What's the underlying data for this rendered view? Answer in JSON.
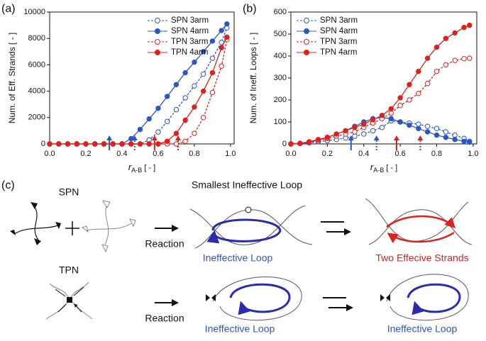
{
  "chart_data": [
    {
      "type": "line",
      "panel": "(a)",
      "ylabel": "Num. of Eff.  Strands [ - ]",
      "xlabel": {
        "symbol": "r",
        "subscript": "A-B",
        "unit": "[ - ]"
      },
      "x": [
        0,
        0.05,
        0.1,
        0.15,
        0.2,
        0.25,
        0.3,
        0.35,
        0.4,
        0.45,
        0.5,
        0.55,
        0.6,
        0.65,
        0.7,
        0.75,
        0.8,
        0.85,
        0.9,
        0.95,
        0.98
      ],
      "xlim": [
        0,
        1.02
      ],
      "ylim": [
        0,
        10000
      ],
      "xticks": [
        {
          "value": 0,
          "label": "0.0"
        },
        0.2,
        0.4,
        0.6,
        0.8,
        {
          "value": 1,
          "label": "1.0"
        }
      ],
      "yticks": [
        0,
        2000,
        4000,
        6000,
        8000,
        10000
      ],
      "legend": "upper right",
      "series": [
        {
          "name": "SPN 3arm",
          "color": "#2b57c4",
          "dashed": true,
          "marker": "open",
          "values": [
            0,
            0,
            0,
            0,
            0,
            0,
            0,
            0,
            0,
            0,
            0,
            300,
            900,
            1700,
            2600,
            3500,
            4400,
            5300,
            6500,
            7700,
            8800
          ]
        },
        {
          "name": "SPN 4arm",
          "color": "#2b57c4",
          "dashed": false,
          "marker": "filled",
          "values": [
            0,
            0,
            0,
            0,
            0,
            0,
            0,
            0,
            0,
            400,
            1100,
            1900,
            2700,
            3600,
            4500,
            5400,
            6200,
            7000,
            7800,
            8600,
            9100
          ]
        },
        {
          "name": "TPN 3arm",
          "color": "#e0201c",
          "dashed": true,
          "marker": "open",
          "values": [
            0,
            0,
            0,
            0,
            0,
            0,
            0,
            0,
            0,
            0,
            0,
            0,
            0,
            0,
            0,
            200,
            800,
            2000,
            3900,
            5900,
            7900
          ]
        },
        {
          "name": "TPN 4arm",
          "color": "#e0201c",
          "dashed": false,
          "marker": "filled",
          "values": [
            0,
            0,
            0,
            0,
            0,
            0,
            0,
            0,
            0,
            0,
            0,
            0,
            0,
            200,
            800,
            1800,
            2800,
            4000,
            5400,
            7300,
            8100
          ]
        }
      ],
      "arrows": [
        {
          "x": 0.33,
          "color": "#2b57c4",
          "dashed": false
        },
        {
          "x": 0.47,
          "color": "#2b57c4",
          "dashed": true
        },
        {
          "x": 0.58,
          "color": "#e0201c",
          "dashed": false
        },
        {
          "x": 0.71,
          "color": "#e0201c",
          "dashed": true
        }
      ]
    },
    {
      "type": "line",
      "panel": "(b)",
      "ylabel": "Num. of Ineff. Loops [ - ]",
      "xlabel": {
        "symbol": "r",
        "subscript": "A-B",
        "unit": "[ - ]"
      },
      "x": [
        0,
        0.05,
        0.1,
        0.15,
        0.2,
        0.25,
        0.3,
        0.35,
        0.4,
        0.45,
        0.5,
        0.55,
        0.6,
        0.65,
        0.7,
        0.75,
        0.8,
        0.85,
        0.9,
        0.95,
        0.98
      ],
      "xlim": [
        0,
        1.02
      ],
      "ylim": [
        0,
        600
      ],
      "xticks": [
        {
          "value": 0,
          "label": "0.0"
        },
        0.2,
        0.4,
        0.6,
        0.8,
        {
          "value": 1,
          "label": "1.0"
        }
      ],
      "yticks": [
        0,
        100,
        200,
        300,
        400,
        500,
        600
      ],
      "legend": "upper left",
      "series": [
        {
          "name": "SPN 3arm",
          "color": "#2b57c4",
          "dashed": true,
          "marker": "open",
          "values": [
            0,
            2,
            5,
            10,
            15,
            20,
            27,
            35,
            45,
            60,
            75,
            105,
            100,
            95,
            90,
            80,
            70,
            55,
            40,
            25,
            12
          ]
        },
        {
          "name": "SPN 4arm",
          "color": "#2b57c4",
          "dashed": false,
          "marker": "filled",
          "values": [
            0,
            2,
            8,
            18,
            30,
            45,
            60,
            80,
            100,
            115,
            120,
            115,
            100,
            85,
            70,
            55,
            40,
            30,
            20,
            12,
            8
          ]
        },
        {
          "name": "TPN 3arm",
          "color": "#e0201c",
          "dashed": true,
          "marker": "open",
          "values": [
            0,
            2,
            8,
            15,
            25,
            35,
            45,
            55,
            75,
            95,
            115,
            140,
            175,
            200,
            230,
            275,
            330,
            360,
            380,
            388,
            390
          ]
        },
        {
          "name": "TPN 4arm",
          "color": "#e0201c",
          "dashed": false,
          "marker": "filled",
          "values": [
            0,
            3,
            10,
            20,
            30,
            45,
            60,
            75,
            90,
            110,
            130,
            160,
            210,
            270,
            330,
            390,
            440,
            480,
            505,
            530,
            540
          ]
        }
      ],
      "arrows": [
        {
          "x": 0.33,
          "color": "#2b57c4",
          "dashed": false
        },
        {
          "x": 0.47,
          "color": "#2b57c4",
          "dashed": true
        },
        {
          "x": 0.58,
          "color": "#e0201c",
          "dashed": false
        },
        {
          "x": 0.71,
          "color": "#e0201c",
          "dashed": true
        }
      ]
    }
  ],
  "diagram": {
    "panel": "(c)",
    "title": "Smallest Ineffective Loop",
    "spn": "SPN",
    "tpn": "TPN",
    "reaction_top": "Reaction",
    "reaction_bottom": "Reaction",
    "loop_top": "Ineffective Loop",
    "loop_bottom_mid": "Ineffective Loop",
    "loop_bottom_right": "Ineffective Loop",
    "two_strands": "Two Effecive Strands"
  }
}
